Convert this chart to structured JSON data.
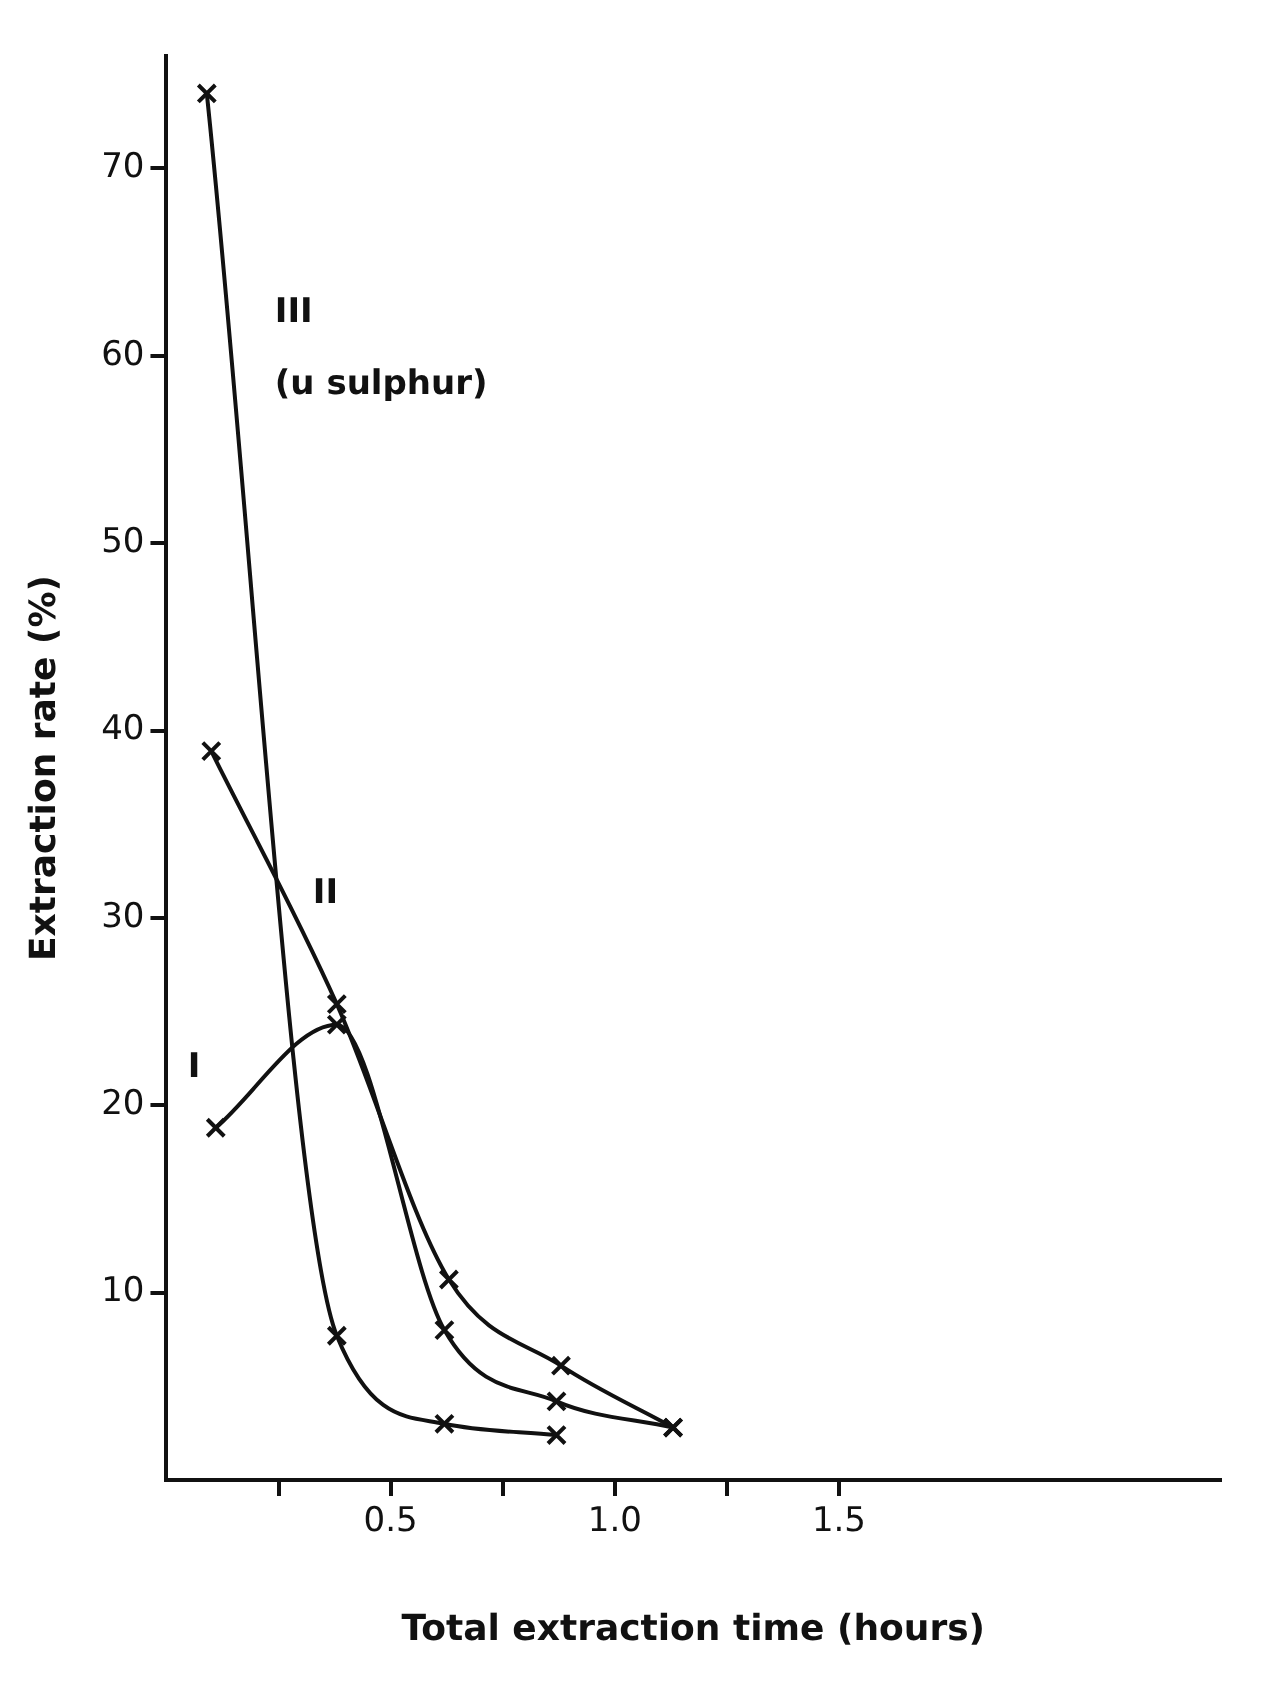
{
  "chart_data": {
    "type": "line",
    "xlabel": "Total extraction time (hours)",
    "ylabel": "Extraction rate (%)",
    "series": [
      {
        "name": "I",
        "color": "#111111",
        "x": [
          0.11,
          0.38,
          0.62,
          0.87,
          1.13
        ],
        "values": [
          18.8,
          24.3,
          8.0,
          4.2,
          2.8
        ]
      },
      {
        "name": "II",
        "color": "#111111",
        "x": [
          0.1,
          0.38,
          0.63,
          0.88,
          1.13
        ],
        "values": [
          38.9,
          25.4,
          10.7,
          6.1,
          2.8
        ]
      },
      {
        "name": "III",
        "color": "#111111",
        "x": [
          0.09,
          0.38,
          0.62,
          0.87
        ],
        "values": [
          74,
          7.7,
          3.0,
          2.4
        ]
      }
    ],
    "annotations": [
      "(u sulphur)"
    ],
    "xlim": [
      0,
      2.35
    ],
    "xticks": [
      {
        "value": 0.25,
        "label": null
      },
      0.5,
      {
        "value": 0.75,
        "label": null
      },
      {
        "value": 1.0,
        "label": "1.0"
      },
      {
        "value": 1.25,
        "label": null
      },
      1.5
    ],
    "ylim": [
      0,
      76
    ],
    "yticks": [
      10,
      20,
      30,
      40,
      50,
      60,
      70
    ],
    "grid": false,
    "legend": false,
    "marker": "cross",
    "line_style": "solid"
  }
}
